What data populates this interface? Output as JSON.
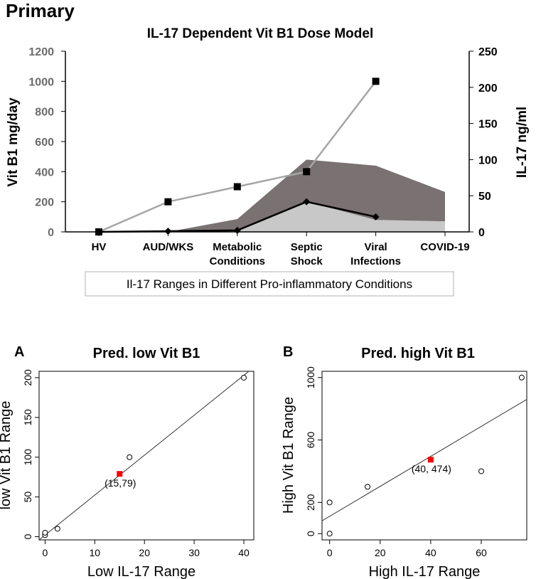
{
  "colors": {
    "high_area": "#7a7272",
    "low_area": "#c8c8c8",
    "vit_line": "#a6a6a6",
    "il17_line": "#000000",
    "pred_point": "#ff0000",
    "text": "#000000",
    "left_tick_text": "#6b6b6b",
    "footnote_border": "#b0b0b0"
  },
  "figure": {
    "section_label": "Primary",
    "footnote": "Il-17 Ranges in Different Pro-inflammatory Conditions"
  },
  "chart_data": [
    {
      "type": "line",
      "title": "IL-17 Dependent Vit B1 Dose Model",
      "ylabel": "Vit B1 mg/day",
      "y2label": "IL-17 ng/ml",
      "ylim": [
        0,
        1200
      ],
      "y2lim": [
        0,
        250
      ],
      "yticks": [
        "0",
        "200",
        "400",
        "600",
        "800",
        "1000",
        "1200"
      ],
      "y2ticks": [
        "0",
        "50",
        "100",
        "150",
        "200",
        "250"
      ],
      "categories": [
        [
          "HV"
        ],
        [
          "AUD/WKS"
        ],
        [
          "Metabolic",
          "Conditions"
        ],
        [
          "Septic",
          "Shock"
        ],
        [
          "Viral",
          "Infections"
        ],
        [
          "COVID-19"
        ]
      ],
      "series": [
        {
          "name": "Vit B1 dose",
          "kind": "line",
          "marker": "square",
          "axis": "left",
          "x": [
            0,
            1,
            2,
            3,
            4
          ],
          "values": [
            0,
            200,
            300,
            400,
            1000
          ]
        },
        {
          "name": "IL-17",
          "kind": "line",
          "marker": "diamond",
          "axis": "left",
          "x": [
            0,
            1,
            2,
            3,
            4
          ],
          "values": [
            0,
            5,
            10,
            200,
            100
          ]
        },
        {
          "name": "High IL-17 range",
          "kind": "area",
          "axis": "left",
          "x": [
            1,
            2,
            3,
            4,
            5
          ],
          "values": [
            0,
            85,
            480,
            440,
            265
          ]
        },
        {
          "name": "Low IL-17 range",
          "kind": "area",
          "axis": "left",
          "x": [
            1,
            2,
            3,
            4,
            5
          ],
          "values": [
            0,
            5,
            200,
            80,
            70
          ]
        }
      ]
    },
    {
      "type": "scatter",
      "panel": "A",
      "title": "Pred. low Vit B1",
      "xlabel": "Low IL-17 Range",
      "ylabel": "low Vit B1 Range",
      "xlim": [
        -1.2,
        42
      ],
      "ylim": [
        -4,
        208
      ],
      "xticks": [
        0,
        10,
        20,
        30,
        40
      ],
      "yticks": [
        0,
        50,
        100,
        150,
        200
      ],
      "points": [
        [
          0,
          2
        ],
        [
          0,
          5
        ],
        [
          2.5,
          10
        ],
        [
          17,
          100
        ],
        [
          40,
          200
        ]
      ],
      "fit_line": [
        [
          -1.2,
          -4
        ],
        [
          42,
          213
        ]
      ],
      "predicted": {
        "x": 15,
        "y": 79,
        "label": "(15,79)"
      }
    },
    {
      "type": "scatter",
      "panel": "B",
      "title": "Pred. high Vit B1",
      "xlabel": "High IL-17 Range",
      "ylabel": "High Vit B1 Range",
      "xlim": [
        -3,
        78
      ],
      "ylim": [
        -40,
        1040
      ],
      "xticks": [
        0,
        20,
        40,
        60
      ],
      "yticks": [
        0,
        200,
        600,
        1000
      ],
      "points": [
        [
          0,
          0
        ],
        [
          0,
          200
        ],
        [
          15,
          300
        ],
        [
          60,
          400
        ],
        [
          76,
          1000
        ]
      ],
      "fit_line": [
        [
          -3,
          82
        ],
        [
          78,
          860
        ]
      ],
      "predicted": {
        "x": 40,
        "y": 474,
        "label": "(40, 474)"
      }
    }
  ]
}
